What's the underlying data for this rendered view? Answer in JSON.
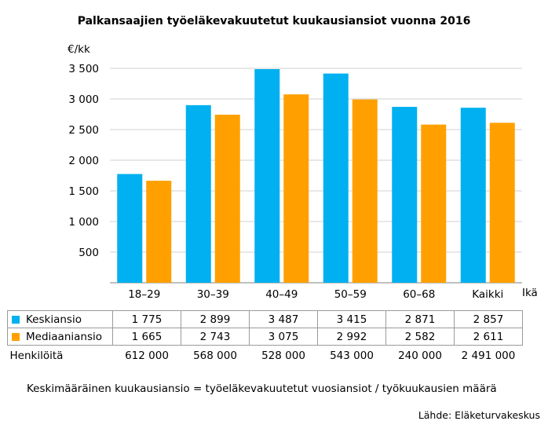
{
  "chart_data": {
    "type": "bar",
    "title": "Palkansaajien työeläkevakuutetut kuukausiansiot vuonna 2016",
    "ylabel": "€/kk",
    "xlabel": "Ikä",
    "ylim": [
      0,
      3500
    ],
    "yticks": [
      500,
      1000,
      1500,
      2000,
      2500,
      3000,
      3500
    ],
    "ytick_labels": [
      "500",
      "1 000",
      "1 500",
      "2 000",
      "2 500",
      "3 000",
      "3 500"
    ],
    "grid": true,
    "categories": [
      "18–29",
      "30–39",
      "40–49",
      "50–59",
      "60–68",
      "Kaikki"
    ],
    "series": [
      {
        "name": "Keskiansio",
        "color": "#00b0f0",
        "values": [
          1775,
          2899,
          3487,
          3415,
          2871,
          2857
        ],
        "labels": [
          "1 775",
          "2 899",
          "3 487",
          "3 415",
          "2 871",
          "2 857"
        ]
      },
      {
        "name": "Mediaaniansio",
        "color": "#ffa000",
        "values": [
          1665,
          2743,
          3075,
          2992,
          2582,
          2611
        ],
        "labels": [
          "1 665",
          "2 743",
          "3 075",
          "2 992",
          "2 582",
          "2 611"
        ]
      }
    ],
    "count_row": {
      "label": "Henkilöitä",
      "values": [
        "612 000",
        "568 000",
        "528 000",
        "543 000",
        "240 000",
        "2 491 000"
      ]
    },
    "footnote": "Keskimääräinen kuukausiansio = työeläkevakuutetut vuosiansiot / työkuukausien määrä",
    "source": "Lähde: Eläketurvakeskus"
  }
}
